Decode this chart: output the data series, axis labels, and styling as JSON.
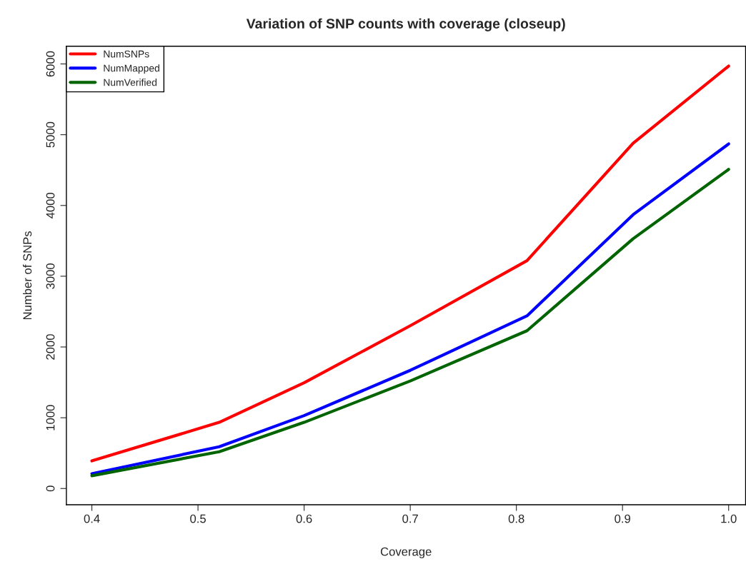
{
  "chart_data": {
    "type": "line",
    "title": "Variation of SNP counts with coverage (closeup)",
    "xlabel": "Coverage",
    "ylabel": "Number of SNPs",
    "x": [
      0.4,
      0.52,
      0.6,
      0.7,
      0.81,
      0.91,
      1.0
    ],
    "series": [
      {
        "name": "NumSNPs",
        "color": "#ff0000",
        "values": [
          390,
          935,
          1495,
          2300,
          3220,
          4880,
          5970
        ]
      },
      {
        "name": "NumMapped",
        "color": "#0000ff",
        "values": [
          210,
          590,
          1030,
          1670,
          2440,
          3870,
          4870
        ]
      },
      {
        "name": "NumVerified",
        "color": "#006400",
        "values": [
          180,
          520,
          935,
          1520,
          2230,
          3530,
          4510
        ]
      }
    ],
    "xlim": [
      0.376,
      1.016
    ],
    "ylim": [
      -230,
      6250
    ],
    "xticks": [
      {
        "value": 0.4,
        "label": "0.4"
      },
      {
        "value": 0.5,
        "label": "0.5"
      },
      {
        "value": 0.6,
        "label": "0.6"
      },
      {
        "value": 0.7,
        "label": "0.7"
      },
      {
        "value": 0.8,
        "label": "0.8"
      },
      {
        "value": 0.9,
        "label": "0.9"
      },
      {
        "value": 1.0,
        "label": "1.0"
      }
    ],
    "yticks": [
      0,
      1000,
      2000,
      3000,
      4000,
      5000,
      6000
    ],
    "grid": false,
    "legend": "top left",
    "marker": "none",
    "line_style": "solid"
  }
}
